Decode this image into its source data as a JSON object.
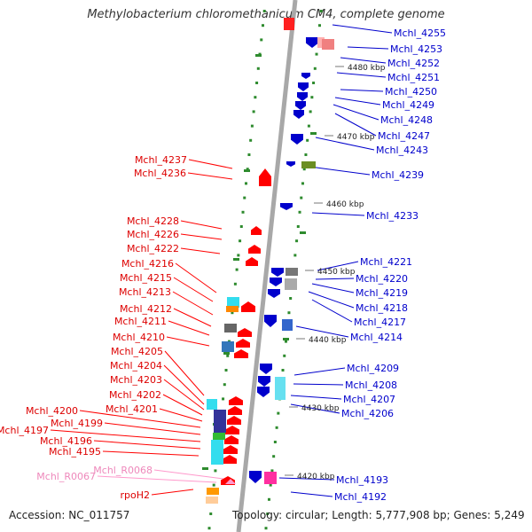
{
  "title": "Methylobacterium chloromethanicum CM4, complete genome",
  "footer": {
    "accession": "Accession: NC_011757",
    "summary": "Topology: circular; Length: 5,777,908 bp; Genes: 5,249"
  },
  "colors": {
    "forward": "#ff0000",
    "reverse": "#0000cc",
    "rna": "#ff99cc",
    "tick": "#2e8b2e",
    "backbone": "#a0a0a0"
  },
  "scale_labels": [
    "4480 kbp",
    "4470 kbp",
    "4460 kbp",
    "4450 kbp",
    "4440 kbp",
    "4430 kbp",
    "4420 kbp"
  ],
  "right_labels": [
    "Mchl_4255",
    "Mchl_4253",
    "Mchl_4252",
    "Mchl_4251",
    "Mchl_4250",
    "Mchl_4249",
    "Mchl_4248",
    "Mchl_4247",
    "Mchl_4243",
    "Mchl_4239",
    "Mchl_4233",
    "Mchl_4221",
    "Mchl_4220",
    "Mchl_4219",
    "Mchl_4218",
    "Mchl_4217",
    "Mchl_4214",
    "Mchl_4209",
    "Mchl_4208",
    "Mchl_4207",
    "Mchl_4206",
    "Mchl_4193",
    "Mchl_4192"
  ],
  "left_labels": [
    "Mchl_4237",
    "Mchl_4236",
    "Mchl_4228",
    "Mchl_4226",
    "Mchl_4222",
    "Mchl_4216",
    "Mchl_4215",
    "Mchl_4213",
    "Mchl_4212",
    "Mchl_4211",
    "Mchl_4210",
    "Mchl_4205",
    "Mchl_4204",
    "Mchl_4203",
    "Mchl_4202",
    "Mchl_4201",
    "Mchl_4200",
    "Mchl_4199",
    "Mchl_4197",
    "Mchl_4196",
    "Mchl_4195",
    "rpoH2"
  ],
  "rna_labels": [
    "Mchl_R0068",
    "Mchl_R0067"
  ]
}
